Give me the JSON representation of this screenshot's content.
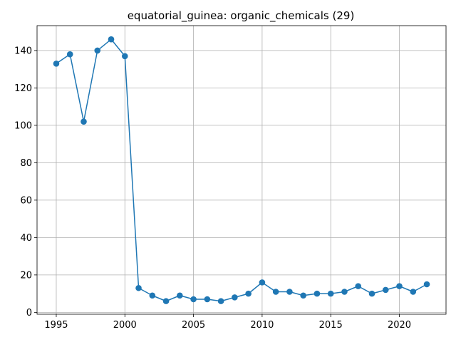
{
  "chart_data": {
    "type": "line",
    "title": "equatorial_guinea: organic_chemicals (29)",
    "xlabel": "",
    "ylabel": "",
    "x": [
      1995,
      1996,
      1997,
      1998,
      1999,
      2000,
      2001,
      2002,
      2003,
      2004,
      2005,
      2006,
      2007,
      2008,
      2009,
      2010,
      2011,
      2012,
      2013,
      2014,
      2015,
      2016,
      2017,
      2018,
      2019,
      2020,
      2021,
      2022
    ],
    "series": [
      {
        "values": [
          133,
          138,
          102,
          140,
          146,
          137,
          13,
          9,
          6,
          9,
          7,
          7,
          6,
          8,
          10,
          16,
          11,
          11,
          9,
          10,
          10,
          11,
          14,
          10,
          12,
          14,
          11,
          15
        ],
        "color": "#1f77b4",
        "marker": "circle"
      }
    ],
    "xlim": [
      1993.6,
      2023.4
    ],
    "ylim": [
      -1,
      153.3
    ],
    "x_ticks": [
      1995,
      2000,
      2005,
      2010,
      2015,
      2020
    ],
    "y_ticks": [
      0,
      20,
      40,
      60,
      80,
      100,
      120,
      140
    ],
    "grid": true,
    "legend": "none"
  }
}
